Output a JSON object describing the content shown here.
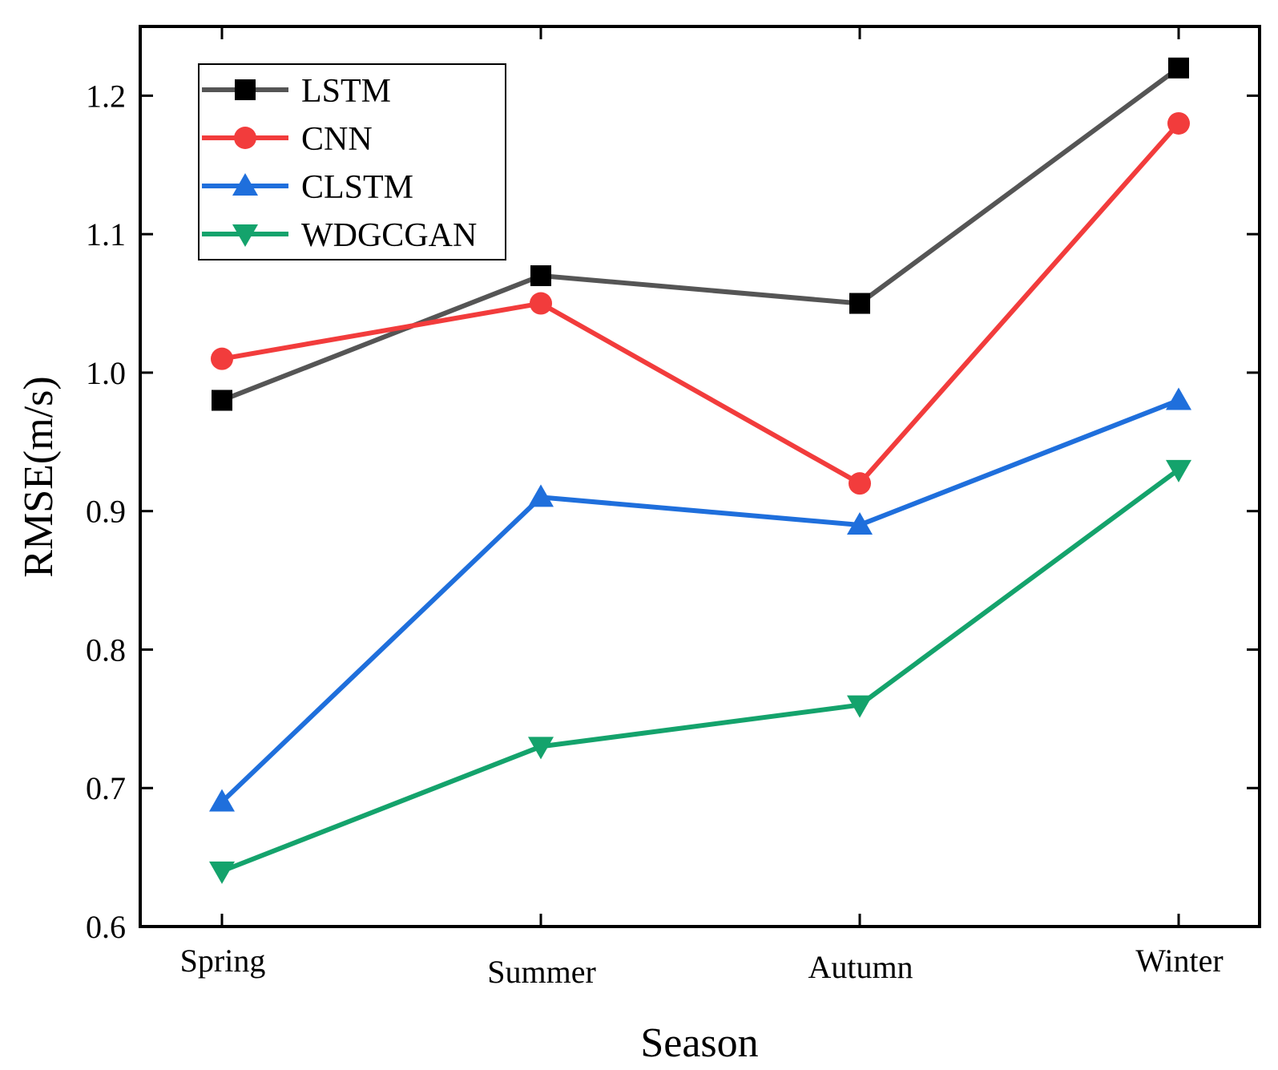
{
  "chart_data": {
    "type": "line",
    "title": "",
    "xlabel": "Season",
    "ylabel": "RMSE(m/s)",
    "categories": [
      "Spring",
      "Summer",
      "Autumn",
      "Winter"
    ],
    "ylim": [
      0.6,
      1.25
    ],
    "yticks": [
      "0.6",
      "0.7",
      "0.8",
      "0.9",
      "1.0",
      "1.1",
      "1.2"
    ],
    "grid": false,
    "legend_position": "top-left",
    "series": [
      {
        "name": "LSTM",
        "marker": "square",
        "color": "#555555",
        "marker_color": "#000000",
        "values": [
          0.98,
          1.07,
          1.05,
          1.22
        ]
      },
      {
        "name": "CNN",
        "marker": "circle",
        "color": "#f23c3c",
        "marker_color": "#f23c3c",
        "values": [
          1.01,
          1.05,
          0.92,
          1.18
        ]
      },
      {
        "name": "CLSTM",
        "marker": "triangle-up",
        "color": "#1f6fdc",
        "marker_color": "#1f6fdc",
        "values": [
          0.69,
          0.91,
          0.89,
          0.98
        ]
      },
      {
        "name": "WDGCGAN",
        "marker": "triangle-down",
        "color": "#14a36c",
        "marker_color": "#14a36c",
        "values": [
          0.64,
          0.73,
          0.76,
          0.93
        ]
      }
    ]
  }
}
